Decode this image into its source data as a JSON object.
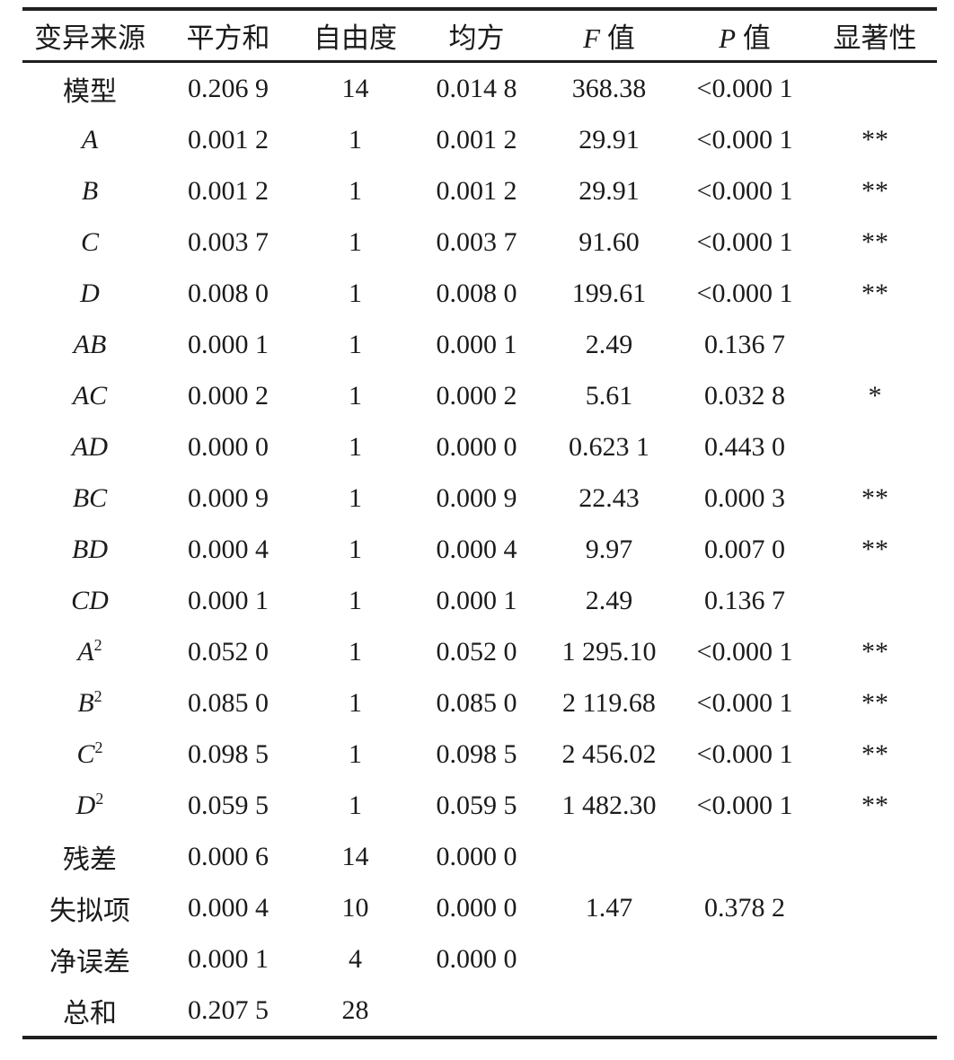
{
  "table": {
    "headers": {
      "source": "变异来源",
      "sum_of_squares": "平方和",
      "degrees_of_freedom": "自由度",
      "mean_square": "均方",
      "f_value": "F 值",
      "p_value": "P 值",
      "significance": "显著性"
    },
    "rows": [
      {
        "source": "模型",
        "ss": "0.206 9",
        "df": "14",
        "ms": "0.014 8",
        "f": "368.38",
        "p": "<0.000 1",
        "sig": ""
      },
      {
        "source": "A",
        "ss": "0.001 2",
        "df": "1",
        "ms": "0.001 2",
        "f": "29.91",
        "p": "<0.000 1",
        "sig": "**"
      },
      {
        "source": "B",
        "ss": "0.001 2",
        "df": "1",
        "ms": "0.001 2",
        "f": "29.91",
        "p": "<0.000 1",
        "sig": "**"
      },
      {
        "source": "C",
        "ss": "0.003 7",
        "df": "1",
        "ms": "0.003 7",
        "f": "91.60",
        "p": "<0.000 1",
        "sig": "**"
      },
      {
        "source": "D",
        "ss": "0.008 0",
        "df": "1",
        "ms": "0.008 0",
        "f": "199.61",
        "p": "<0.000 1",
        "sig": "**"
      },
      {
        "source": "AB",
        "ss": "0.000 1",
        "df": "1",
        "ms": "0.000 1",
        "f": "2.49",
        "p": "0.136 7",
        "sig": ""
      },
      {
        "source": "AC",
        "ss": "0.000 2",
        "df": "1",
        "ms": "0.000 2",
        "f": "5.61",
        "p": "0.032 8",
        "sig": "*"
      },
      {
        "source": "AD",
        "ss": "0.000 0",
        "df": "1",
        "ms": "0.000 0",
        "f": "0.623 1",
        "p": "0.443 0",
        "sig": ""
      },
      {
        "source": "BC",
        "ss": "0.000 9",
        "df": "1",
        "ms": "0.000 9",
        "f": "22.43",
        "p": "0.000 3",
        "sig": "**"
      },
      {
        "source": "BD",
        "ss": "0.000 4",
        "df": "1",
        "ms": "0.000 4",
        "f": "9.97",
        "p": "0.007 0",
        "sig": "**"
      },
      {
        "source": "CD",
        "ss": "0.000 1",
        "df": "1",
        "ms": "0.000 1",
        "f": "2.49",
        "p": "0.136 7",
        "sig": ""
      },
      {
        "source": "A²",
        "ss": "0.052 0",
        "df": "1",
        "ms": "0.052 0",
        "f": "1 295.10",
        "p": "<0.000 1",
        "sig": "**"
      },
      {
        "source": "B²",
        "ss": "0.085 0",
        "df": "1",
        "ms": "0.085 0",
        "f": "2 119.68",
        "p": "<0.000 1",
        "sig": "**"
      },
      {
        "source": "C²",
        "ss": "0.098 5",
        "df": "1",
        "ms": "0.098 5",
        "f": "2 456.02",
        "p": "<0.000 1",
        "sig": "**"
      },
      {
        "source": "D²",
        "ss": "0.059 5",
        "df": "1",
        "ms": "0.059 5",
        "f": "1 482.30",
        "p": "<0.000 1",
        "sig": "**"
      },
      {
        "source": "残差",
        "ss": "0.000 6",
        "df": "14",
        "ms": "0.000 0",
        "f": "",
        "p": "",
        "sig": ""
      },
      {
        "source": "失拟项",
        "ss": "0.000 4",
        "df": "10",
        "ms": "0.000 0",
        "f": "1.47",
        "p": "0.378 2",
        "sig": ""
      },
      {
        "source": "净误差",
        "ss": "0.000 1",
        "df": "4",
        "ms": "0.000 0",
        "f": "",
        "p": "",
        "sig": ""
      },
      {
        "source": "总和",
        "ss": "0.207 5",
        "df": "28",
        "ms": "",
        "f": "",
        "p": "",
        "sig": ""
      }
    ]
  }
}
